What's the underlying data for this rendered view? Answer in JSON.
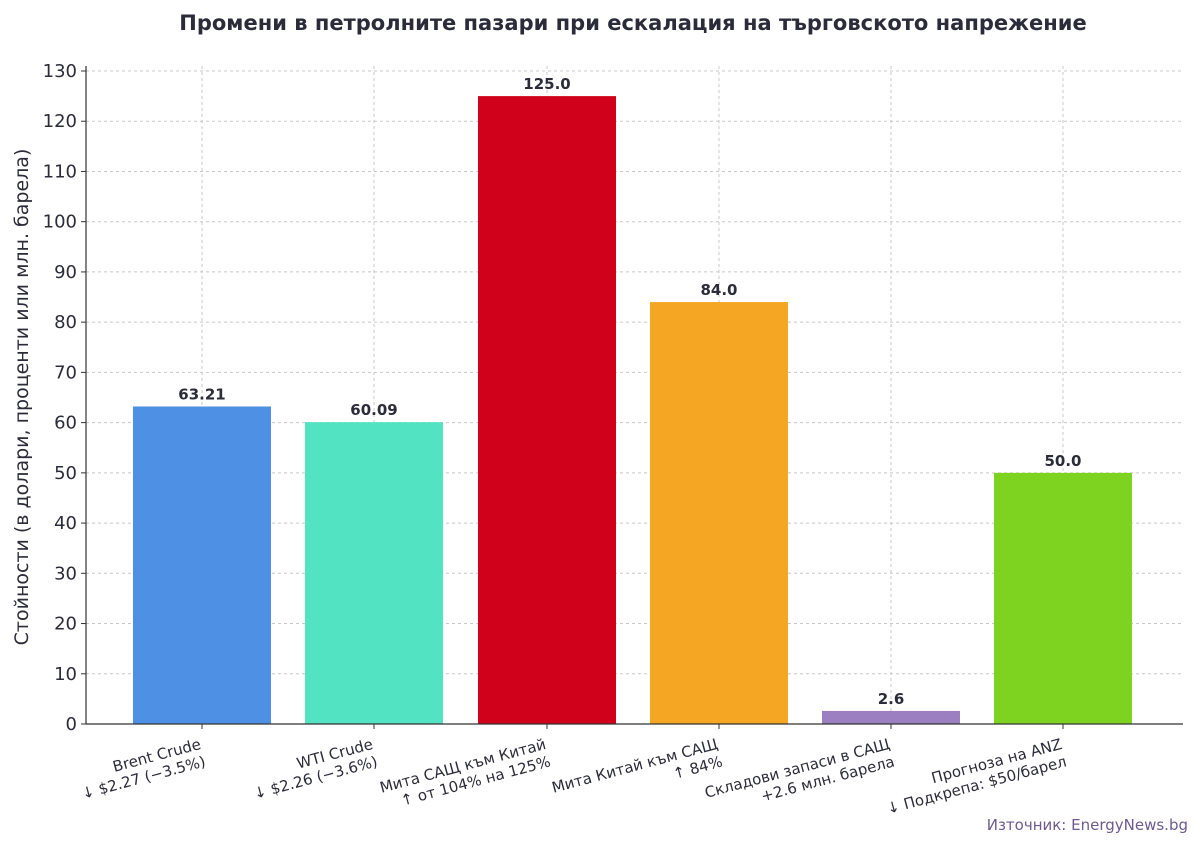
{
  "chart_data": {
    "type": "bar",
    "title": "Промени в петролните пазари при ескалация на търговското напрежение",
    "xlabel": "",
    "ylabel": "Стойности (в долари, проценти или млн. барела)",
    "ylim": [
      0,
      130
    ],
    "yticks": [
      0,
      10,
      20,
      30,
      40,
      50,
      60,
      70,
      80,
      90,
      100,
      110,
      120,
      130
    ],
    "grid": true,
    "categories": [
      [
        "Brent Crude",
        "↓ $2.27 (−3.5%)"
      ],
      [
        "WTI Crude",
        "↓ $2.26 (−3.6%)"
      ],
      [
        "Мита САЩ към Китай",
        "↑ от 104% на 125%"
      ],
      [
        "Мита Китай към САЩ",
        "↑ 84%"
      ],
      [
        "Складови запаси в САЩ",
        "+2.6 млн. барела"
      ],
      [
        "Прогноза на ANZ",
        "↓ Подкрепа: $50/барел"
      ]
    ],
    "values": [
      63.21,
      60.09,
      125.0,
      84.0,
      2.6,
      50.0
    ],
    "value_labels": [
      "63.21",
      "60.09",
      "125.0",
      "84.0",
      "2.6",
      "50.0"
    ],
    "colors": [
      "#4e90e3",
      "#52e3c3",
      "#d0021b",
      "#f5a623",
      "#9b7fc0",
      "#7ed321"
    ],
    "source": "Източник: EnergyNews.bg"
  }
}
